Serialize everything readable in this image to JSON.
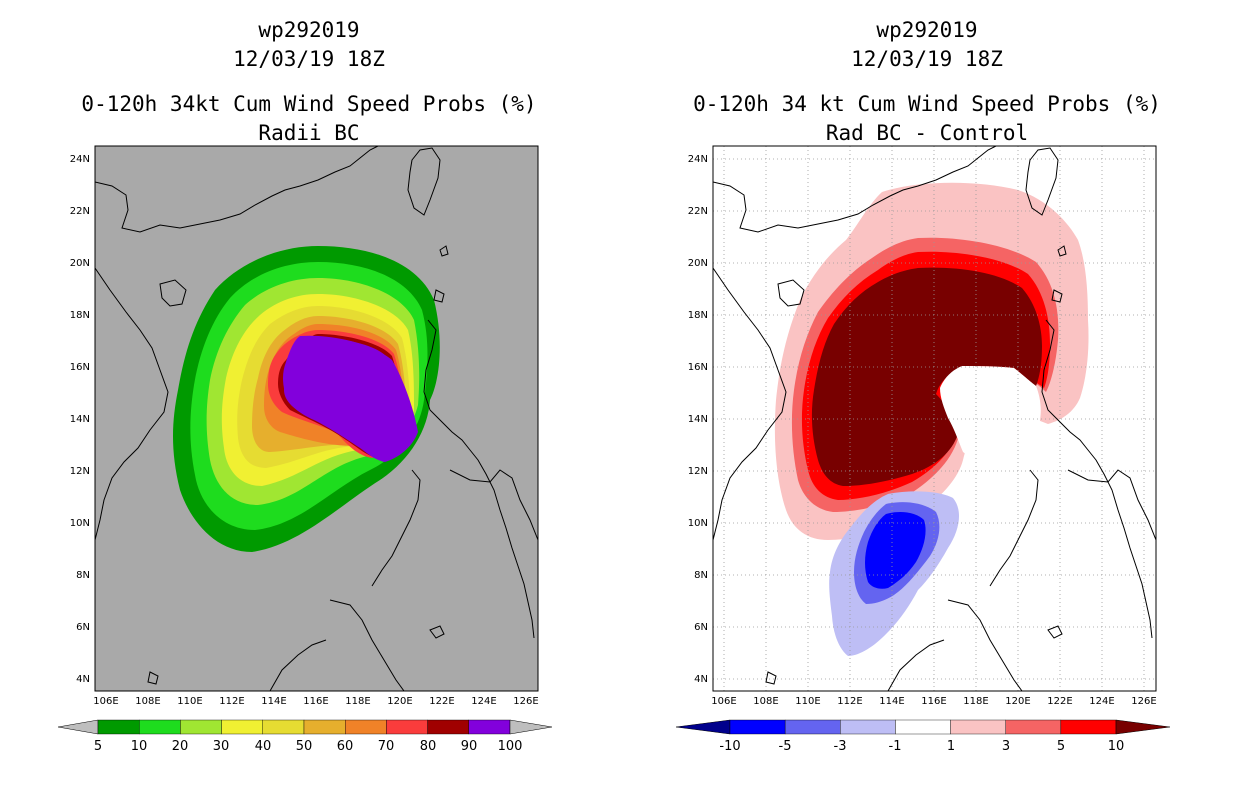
{
  "left": {
    "title_line1": "wp292019",
    "title_line2": "12/03/19 18Z",
    "title_line3": "0-120h 34kt Cum Wind Speed Probs (%)",
    "title_line4": "Radii BC",
    "colorbar": {
      "labels": [
        "5",
        "10",
        "20",
        "30",
        "40",
        "50",
        "60",
        "70",
        "80",
        "90",
        "100"
      ],
      "colors": [
        "#009a00",
        "#1edc1e",
        "#a0e632",
        "#f0f032",
        "#e6dc32",
        "#e6af2d",
        "#f08228",
        "#fa3c3c",
        "#a00000",
        "#8200dc"
      ],
      "under_color": "#bebebe",
      "over_color": "#bebebe"
    },
    "background_color": "#a9a9a9"
  },
  "right": {
    "title_line1": "wp292019",
    "title_line2": "12/03/19 18Z",
    "title_line3": "0-120h 34 kt Cum Wind Speed Probs (%)",
    "title_line4": "Rad BC - Control",
    "colorbar": {
      "labels": [
        "-10",
        "-5",
        "-3",
        "-1",
        "1",
        "3",
        "5",
        "10"
      ],
      "colors": [
        "#0000ff",
        "#6464f0",
        "#bebef5",
        "#ffffff",
        "#fac3c3",
        "#f56464",
        "#ff0000"
      ],
      "under_color": "#00008c",
      "over_color": "#780000"
    },
    "background_color": "#ffffff"
  },
  "axes": {
    "lat_labels": [
      "24N",
      "22N",
      "20N",
      "18N",
      "16N",
      "14N",
      "12N",
      "10N",
      "8N",
      "6N",
      "4N"
    ],
    "lon_labels": [
      "106E",
      "108E",
      "110E",
      "112E",
      "114E",
      "116E",
      "118E",
      "120E",
      "122E",
      "124E",
      "126E"
    ],
    "lat_range": [
      3.5,
      24.5
    ],
    "lon_range": [
      105.5,
      126.5
    ]
  }
}
